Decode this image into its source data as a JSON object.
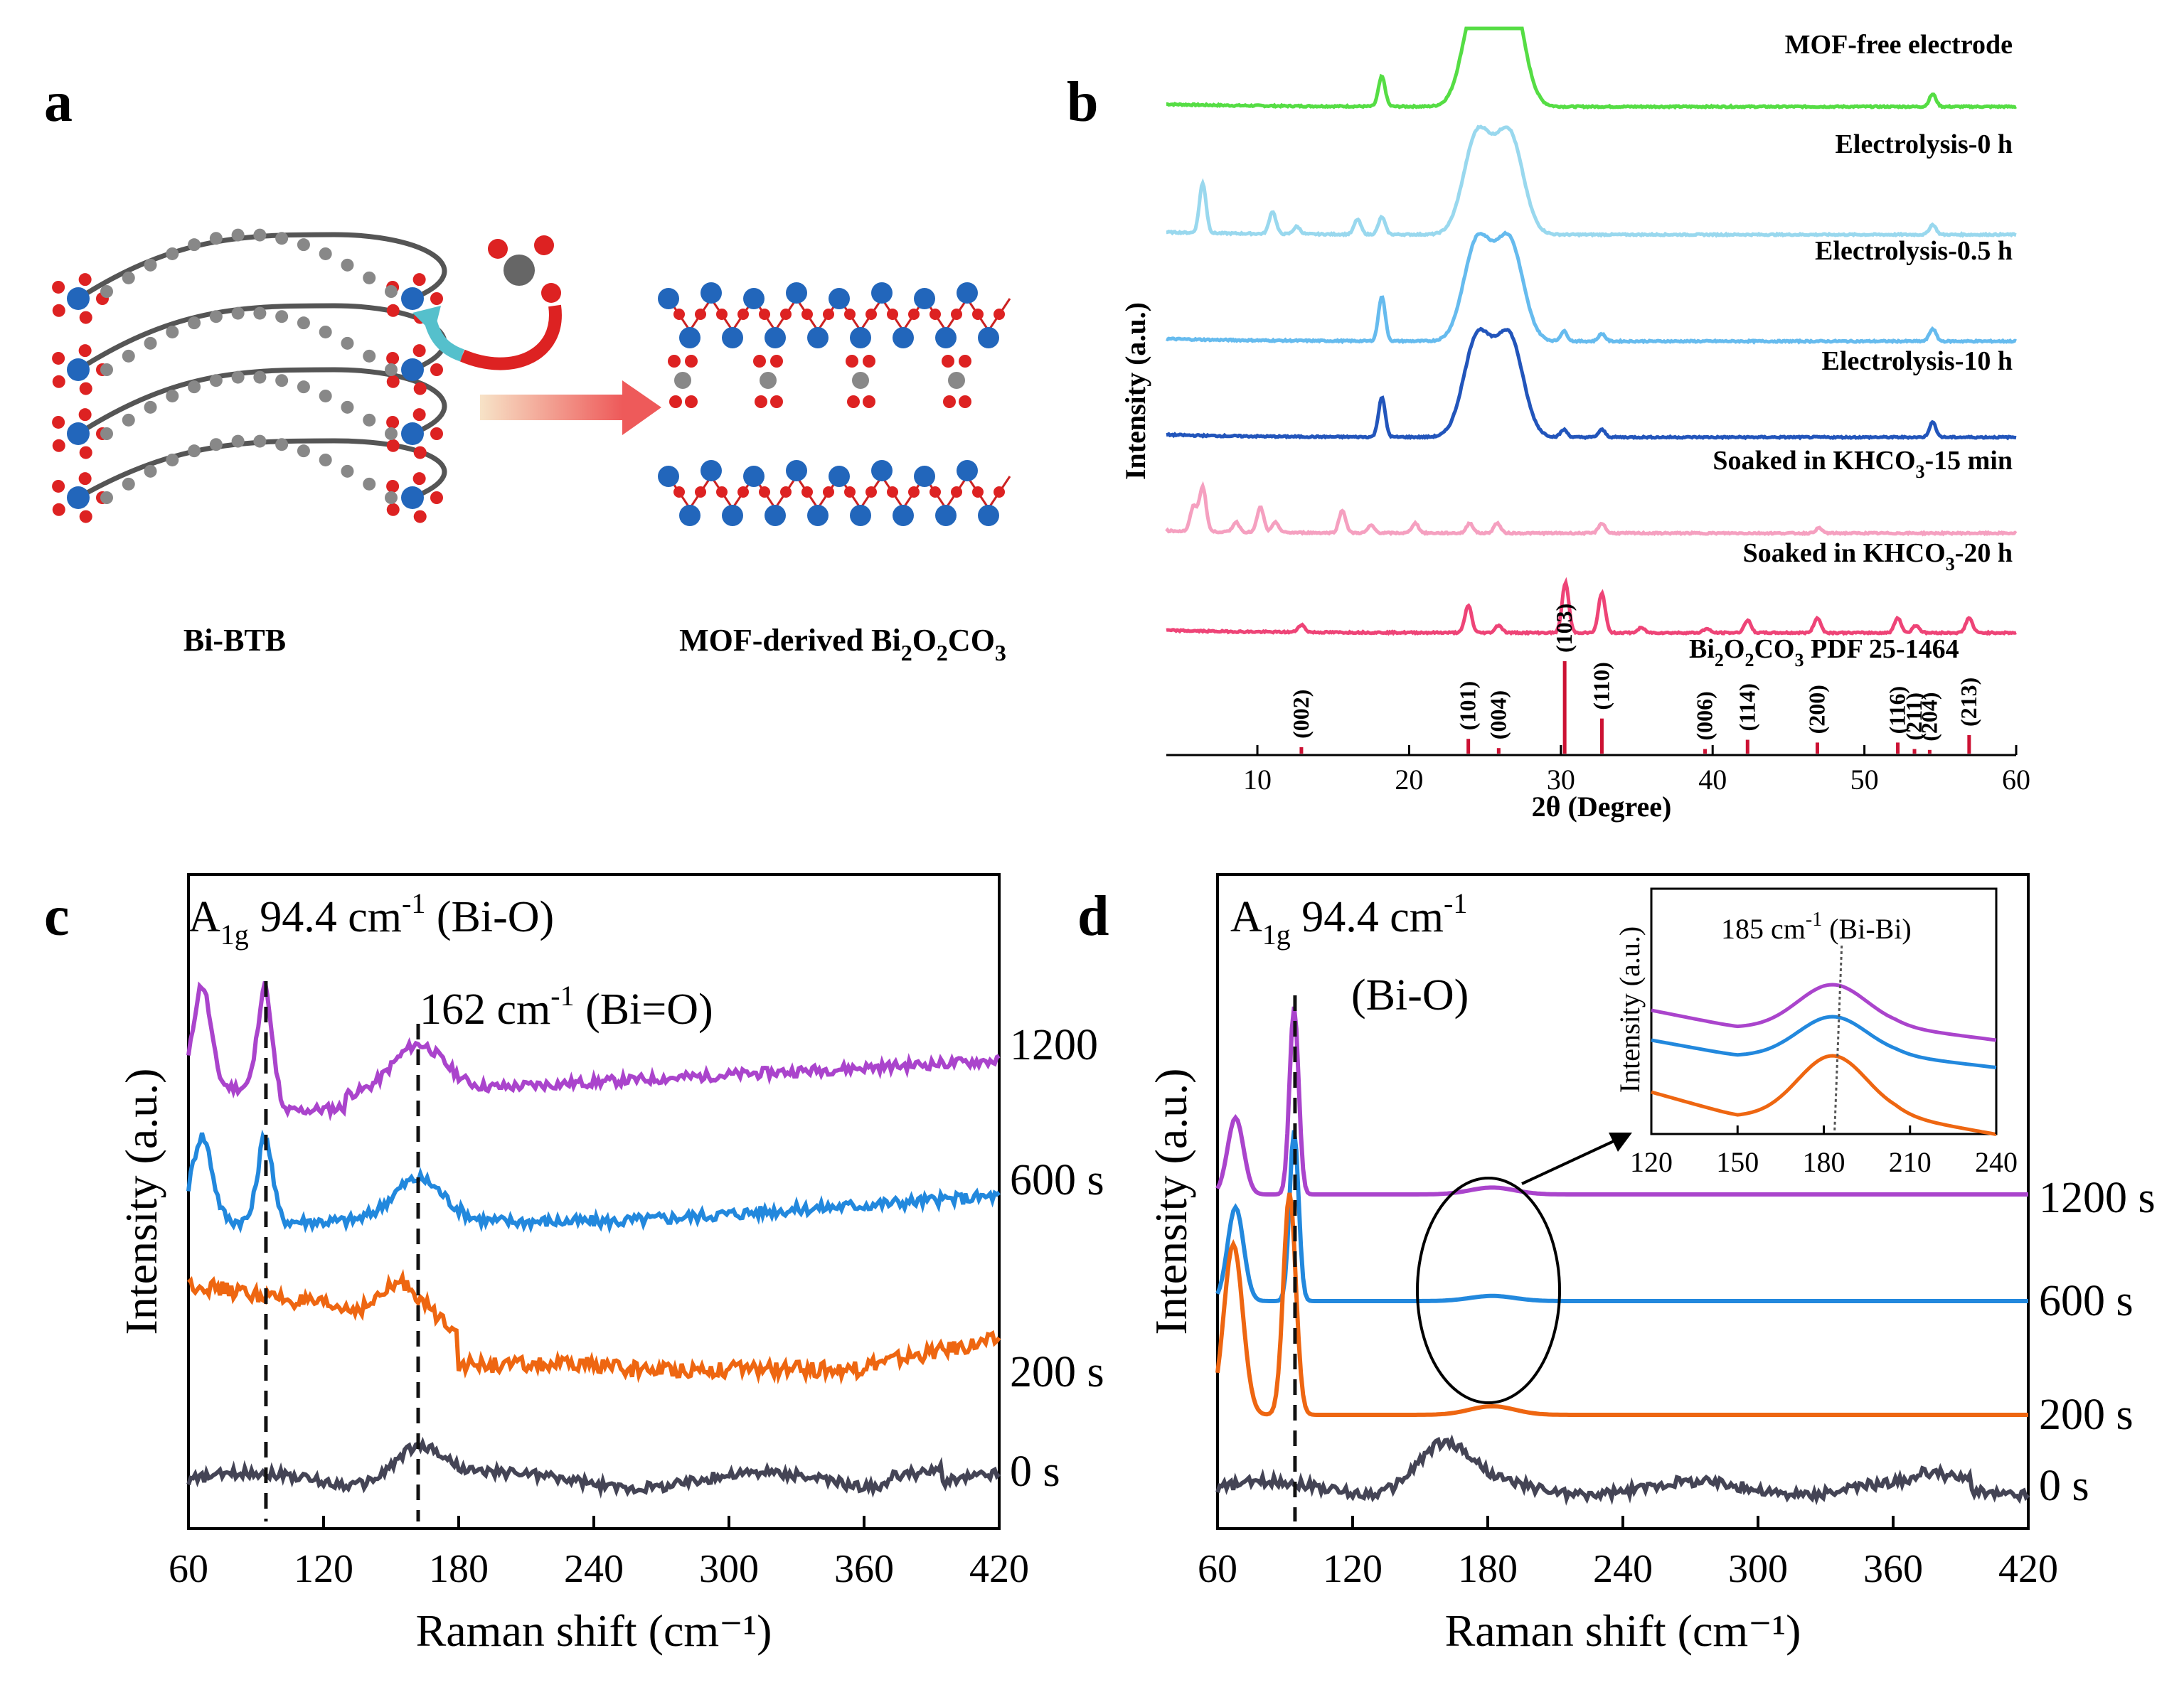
{
  "panels": {
    "a": {
      "letter": "a",
      "left_label": "Bi-BTB",
      "right_label_main": "MOF-derived Bi",
      "right_label_sub1": "2",
      "right_label_mid": "O",
      "right_label_sub2": "2",
      "right_label_mid2": "CO",
      "right_label_sub3": "3"
    },
    "b": {
      "letter": "b"
    },
    "c": {
      "letter": "c"
    },
    "d": {
      "letter": "d"
    }
  },
  "chart_data": [
    {
      "id": "b",
      "type": "line",
      "xlabel": "2θ (Degree)",
      "ylabel": "Intensity (a.u.)",
      "xlim": [
        4,
        60
      ],
      "xticks": [
        10,
        20,
        30,
        40,
        50,
        60
      ],
      "series": [
        {
          "name": "MOF-free electrode",
          "color": "#55dd44",
          "peaks": [
            [
              18.2,
              0.6
            ],
            [
              24.5,
              2.2
            ],
            [
              26.6,
              2.4
            ],
            [
              54.5,
              0.25
            ]
          ]
        },
        {
          "name": "Electrolysis-0 h",
          "color": "#99d8ee",
          "peaks": [
            [
              6.4,
              1.0
            ],
            [
              11.0,
              0.45
            ],
            [
              12.6,
              0.15
            ],
            [
              16.6,
              0.3
            ],
            [
              18.2,
              0.35
            ],
            [
              24.5,
              2.0
            ],
            [
              26.6,
              2.0
            ],
            [
              54.5,
              0.2
            ]
          ]
        },
        {
          "name": "Electrolysis-0.5 h",
          "color": "#66bbee",
          "peaks": [
            [
              18.2,
              0.9
            ],
            [
              24.5,
              2.0
            ],
            [
              26.6,
              2.0
            ],
            [
              30.2,
              0.2
            ],
            [
              32.7,
              0.15
            ],
            [
              54.5,
              0.25
            ]
          ]
        },
        {
          "name": "Electrolysis-10 h",
          "color": "#2255bb",
          "peaks": [
            [
              18.2,
              0.8
            ],
            [
              24.5,
              2.0
            ],
            [
              26.6,
              2.0
            ],
            [
              30.2,
              0.15
            ],
            [
              32.7,
              0.15
            ],
            [
              54.5,
              0.3
            ]
          ]
        },
        {
          "name": "Soaked in KHCO3-15 min",
          "name_main": "Soaked in KHCO",
          "name_sub": "3",
          "name_tail": "-15 min",
          "color": "#f5a0c0",
          "peaks": [
            [
              5.8,
              0.5
            ],
            [
              6.4,
              0.9
            ],
            [
              8.6,
              0.2
            ],
            [
              10.2,
              0.5
            ],
            [
              11.2,
              0.2
            ],
            [
              15.6,
              0.45
            ],
            [
              17.5,
              0.15
            ],
            [
              20.4,
              0.2
            ],
            [
              24.0,
              0.2
            ],
            [
              25.8,
              0.2
            ],
            [
              32.7,
              0.2
            ],
            [
              47.0,
              0.1
            ]
          ]
        },
        {
          "name": "Soaked in KHCO3-20 h",
          "name_main": "Soaked in KHCO",
          "name_sub": "3",
          "name_tail": "-20 h",
          "color": "#ee4477",
          "peaks": [
            [
              12.9,
              0.15
            ],
            [
              23.9,
              0.55
            ],
            [
              25.9,
              0.15
            ],
            [
              30.3,
              1.0
            ],
            [
              32.7,
              0.8
            ],
            [
              35.3,
              0.1
            ],
            [
              39.6,
              0.08
            ],
            [
              42.3,
              0.25
            ],
            [
              46.9,
              0.3
            ],
            [
              52.2,
              0.3
            ],
            [
              53.4,
              0.15
            ],
            [
              56.9,
              0.3
            ]
          ]
        }
      ],
      "reference": {
        "name": "Bi2O2CO3 PDF 25-1464",
        "name_main": "Bi",
        "name_s1": "2",
        "name_m1": "O",
        "name_s2": "2",
        "name_m2": "CO",
        "name_s3": "3",
        "name_tail": " PDF 25-1464",
        "color": "#cc1133",
        "lines": [
          {
            "x": 12.9,
            "h": 0.07,
            "label": "(002)"
          },
          {
            "x": 23.9,
            "h": 0.16,
            "label": "(101)"
          },
          {
            "x": 25.9,
            "h": 0.06,
            "label": "(004)"
          },
          {
            "x": 30.25,
            "h": 1.0,
            "label": "(103)"
          },
          {
            "x": 32.7,
            "h": 0.38,
            "label": "(110)"
          },
          {
            "x": 39.5,
            "h": 0.05,
            "label": "(006)"
          },
          {
            "x": 42.3,
            "h": 0.15,
            "label": "(114)"
          },
          {
            "x": 46.9,
            "h": 0.12,
            "label": "(200)"
          },
          {
            "x": 52.2,
            "h": 0.12,
            "label": "(116)"
          },
          {
            "x": 53.3,
            "h": 0.05,
            "label": "(211)"
          },
          {
            "x": 54.3,
            "h": 0.04,
            "label": "(204)"
          },
          {
            "x": 56.9,
            "h": 0.2,
            "label": "(213)"
          }
        ]
      }
    },
    {
      "id": "c",
      "type": "line",
      "xlabel": "Raman shift (cm⁻¹)",
      "ylabel": "Intensity (a.u.)",
      "xlim": [
        60,
        420
      ],
      "xticks": [
        60,
        120,
        180,
        240,
        300,
        360,
        420
      ],
      "annotations": [
        {
          "text_main": "A",
          "text_sub": "1g",
          "text_tail": " 94.4 cm",
          "text_sup": "-1",
          "text_end": " (Bi-O)",
          "x": 94.4
        },
        {
          "text_main": "162 cm",
          "text_sup": "-1",
          "text_end": " (Bi=O)",
          "x": 162
        }
      ],
      "series": [
        {
          "name": "1200",
          "color": "#aa44cc"
        },
        {
          "name": "600 s",
          "color": "#2288dd"
        },
        {
          "name": "200 s",
          "color": "#ee6611"
        },
        {
          "name": "0 s",
          "color": "#444455"
        }
      ]
    },
    {
      "id": "d",
      "type": "line",
      "xlabel": "Raman shift (cm⁻¹)",
      "ylabel": "Intensity (a.u.)",
      "xlim": [
        60,
        420
      ],
      "xticks": [
        60,
        120,
        180,
        240,
        300,
        360,
        420
      ],
      "annotations": [
        {
          "text_main": "A",
          "text_sub": "1g",
          "text_tail": " 94.4 cm",
          "text_sup": "-1",
          "text_line2": "(Bi-O)",
          "x": 94.4
        }
      ],
      "series": [
        {
          "name": "1200 s",
          "color": "#aa44cc"
        },
        {
          "name": "600 s",
          "color": "#2288dd"
        },
        {
          "name": "200 s",
          "color": "#ee6611"
        },
        {
          "name": "0 s",
          "color": "#444455"
        }
      ],
      "inset": {
        "ylabel": "Intensity (a.u.)",
        "xlim": [
          120,
          240
        ],
        "xticks": [
          120,
          150,
          180,
          210,
          240
        ],
        "annotation_main": "185 cm",
        "annotation_sup": "-1",
        "annotation_end": " (Bi-Bi)",
        "peak_x": 185
      }
    }
  ]
}
